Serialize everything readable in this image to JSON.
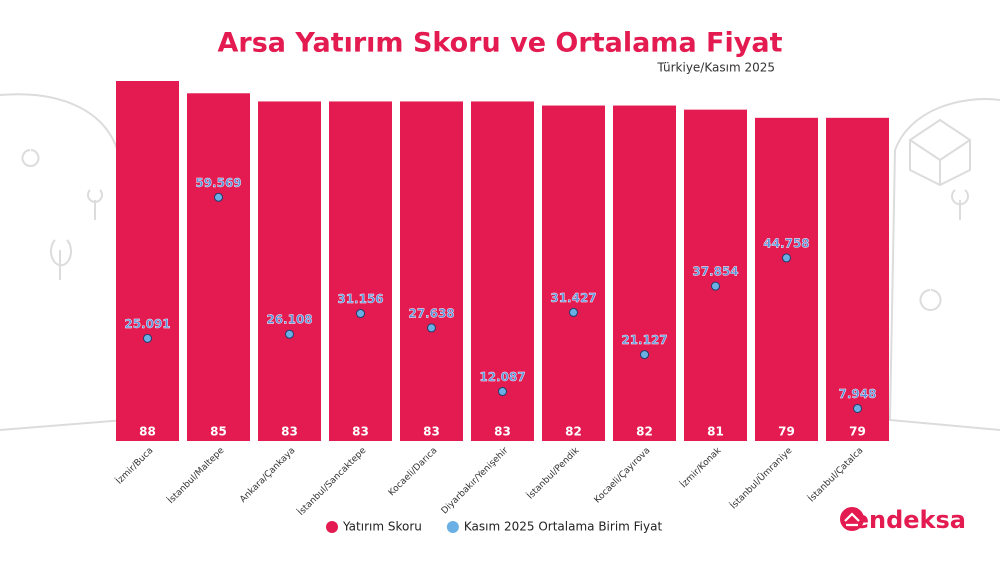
{
  "chart_data": {
    "type": "bar",
    "title": "Arsa Yatırım Skoru ve Ortalama Fiyat",
    "subtitle": "Türkiye/Kasım 2025",
    "categories": [
      "İzmir/Buca",
      "İstanbul/Maltepe",
      "Ankara/Çankaya",
      "İstanbul/Sancaktepe",
      "Kocaeli/Darıca",
      "Diyarbakır/Yenişehir",
      "İstanbul/Pendik",
      "Kocaeli/Çayırova",
      "İzmir/Konak",
      "İstanbul/Ümraniye",
      "İstanbul/Çatalca"
    ],
    "series": [
      {
        "name": "Yatırım Skoru",
        "color": "#e31b51",
        "type": "bar",
        "values": [
          88,
          85,
          83,
          83,
          83,
          83,
          82,
          82,
          81,
          79,
          79
        ]
      },
      {
        "name": "Kasım 2025 Ortalama Birim Fiyat",
        "color": "#6ab0e4",
        "type": "line",
        "axis": "y2",
        "values": [
          25.091,
          59.569,
          26.108,
          31.156,
          27.638,
          12.087,
          31.427,
          21.127,
          37.854,
          44.758,
          7.948
        ]
      }
    ],
    "ylim": [
      0,
      88
    ],
    "y2lim": [
      0,
      88
    ],
    "legend": "bottom",
    "brand": "endeksa"
  }
}
